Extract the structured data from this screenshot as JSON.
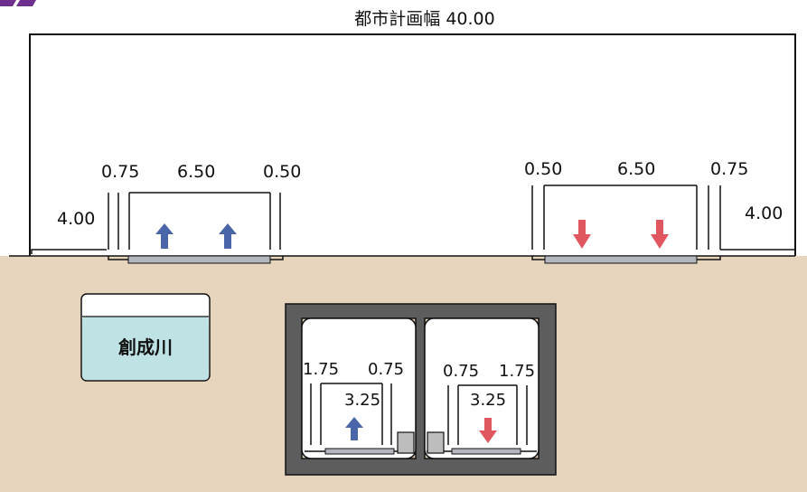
{
  "corner_logo": "",
  "overall": {
    "label": "都市計画幅 40.00"
  },
  "road": {
    "left": {
      "sidewalk": "4.00",
      "dims": [
        "0.75",
        "6.50",
        "0.50"
      ],
      "direction": "up",
      "arrow_color": "#4a66a8"
    },
    "right": {
      "sidewalk": "4.00",
      "dims": [
        "0.50",
        "6.50",
        "0.75"
      ],
      "direction": "down",
      "arrow_color": "#e0575f"
    }
  },
  "river": {
    "label": "創成川",
    "water_color": "#bfe3e4"
  },
  "tunnel": {
    "left": {
      "dims": [
        "1.75",
        "0.75"
      ],
      "width": "3.25",
      "direction": "up"
    },
    "right": {
      "dims": [
        "0.75",
        "1.75"
      ],
      "width": "3.25",
      "direction": "down"
    }
  },
  "colors": {
    "ground": "#e6d4bd",
    "tunnel_frame": "#5d5d5d",
    "pavement": "#b4b6bd"
  }
}
